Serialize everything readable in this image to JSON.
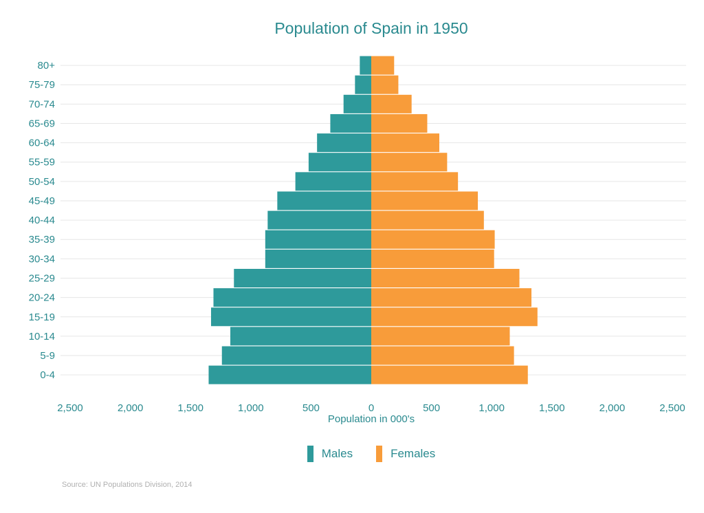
{
  "chart_data": {
    "type": "bar",
    "orientation": "horizontal",
    "title": "Population of Spain in 1950",
    "xlabel": "Population in 000's",
    "ylabel": "",
    "xlim": [
      -2500,
      2500
    ],
    "x_ticks": [
      -2500,
      -2000,
      -1500,
      -1000,
      -500,
      0,
      500,
      1000,
      1500,
      2000,
      2500
    ],
    "x_tick_labels": [
      "2,500",
      "2,000",
      "1,500",
      "1,000",
      "500",
      "0",
      "500",
      "1,000",
      "1,500",
      "2,000",
      "2,500"
    ],
    "categories": [
      "0-4",
      "5-9",
      "10-14",
      "15-19",
      "20-24",
      "25-29",
      "30-34",
      "35-39",
      "40-44",
      "45-49",
      "50-54",
      "55-59",
      "60-64",
      "65-69",
      "70-74",
      "75-79",
      "80+"
    ],
    "series": [
      {
        "name": "Males",
        "color": "#2e9a9b",
        "values": [
          1350,
          1240,
          1170,
          1330,
          1310,
          1140,
          880,
          880,
          860,
          780,
          630,
          520,
          450,
          340,
          230,
          135,
          95
        ]
      },
      {
        "name": "Females",
        "color": "#f89c3a",
        "values": [
          1300,
          1185,
          1150,
          1380,
          1330,
          1230,
          1020,
          1025,
          935,
          885,
          720,
          630,
          565,
          465,
          335,
          225,
          190
        ]
      }
    ],
    "grid": true,
    "legend_position": "bottom"
  },
  "legend": {
    "males": "Males",
    "females": "Females"
  },
  "source": "Source: UN Populations Division, 2014",
  "colors": {
    "males": "#2e9a9b",
    "females": "#f89c3a",
    "text": "#2a8a8f"
  }
}
